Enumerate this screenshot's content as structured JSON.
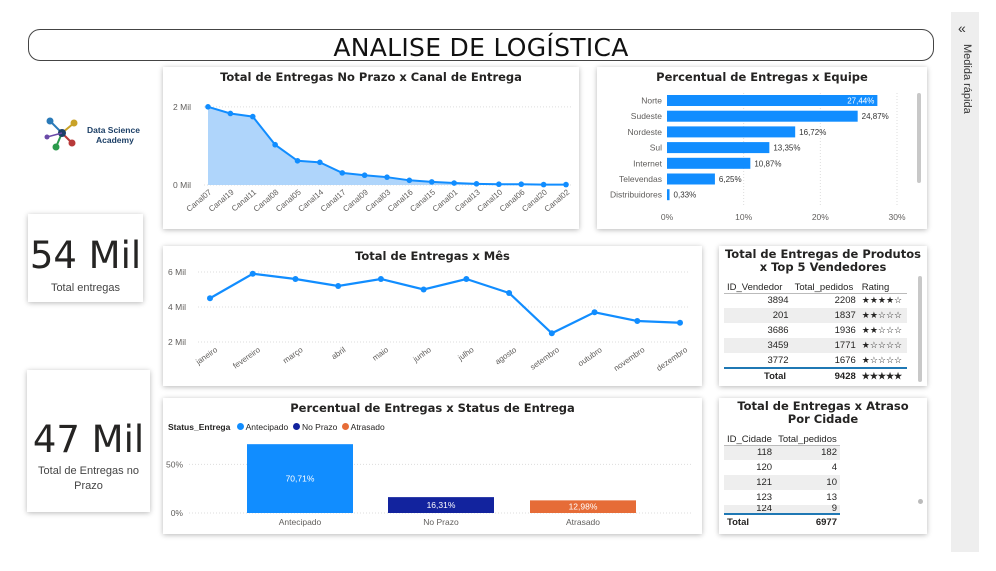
{
  "header": {
    "title": "ANALISE DE LOGÍSTICA"
  },
  "logo": {
    "line1": "Data Science",
    "line2": "Academy"
  },
  "kpi1": {
    "value": "54 Mil",
    "label": "Total entregas"
  },
  "kpi2": {
    "value": "47 Mil",
    "label": "Total de Entregas no Prazo"
  },
  "side_panel": {
    "label": "Medida rápida",
    "icon": "chevron-double-left-icon"
  },
  "colors": {
    "accent": "#118dff",
    "area_fill": "#a6d0fb",
    "no_prazo": "#12239e",
    "atrasado": "#e66c37",
    "total_line": "#1f78b4"
  },
  "chart_canal": {
    "title": "Total de Entregas No Prazo x Canal de Entrega",
    "chart_data": {
      "type": "area",
      "categories": [
        "Canal07",
        "Canal19",
        "Canal11",
        "Canal08",
        "Canal05",
        "Canal14",
        "Canal17",
        "Canal09",
        "Canal03",
        "Canal16",
        "Canal15",
        "Canal01",
        "Canal13",
        "Canal10",
        "Canal06",
        "Canal20",
        "Canal02"
      ],
      "values": [
        2.0,
        1.83,
        1.75,
        1.03,
        0.62,
        0.58,
        0.31,
        0.25,
        0.2,
        0.12,
        0.08,
        0.05,
        0.03,
        0.02,
        0.02,
        0.01,
        0.01
      ],
      "ylim": [
        0,
        2.2
      ],
      "yticks": [
        "0 Mil",
        "2 Mil"
      ]
    }
  },
  "chart_equipe": {
    "title": "Percentual de Entregas x Equipe",
    "chart_data": {
      "type": "bar",
      "orientation": "horizontal",
      "categories": [
        "Norte",
        "Sudeste",
        "Nordeste",
        "Sul",
        "Internet",
        "Televendas",
        "Distribuidores"
      ],
      "values": [
        27.44,
        24.87,
        16.72,
        13.35,
        10.87,
        6.25,
        0.33
      ],
      "labels": [
        "27,44%",
        "24,87%",
        "16,72%",
        "13,35%",
        "10,87%",
        "6,25%",
        "0,33%"
      ],
      "xlim": [
        0,
        30
      ],
      "xticks": [
        "0%",
        "10%",
        "20%",
        "30%"
      ]
    }
  },
  "chart_mes": {
    "title": "Total de Entregas x Mês",
    "chart_data": {
      "type": "line",
      "categories": [
        "janeiro",
        "fevereiro",
        "março",
        "abril",
        "maio",
        "junho",
        "julho",
        "agosto",
        "setembro",
        "outubro",
        "novembro",
        "dezembro"
      ],
      "values": [
        4.5,
        5.9,
        5.6,
        5.2,
        5.6,
        5.0,
        5.6,
        4.8,
        2.5,
        3.7,
        3.2,
        3.1
      ],
      "ylim": [
        2,
        6
      ],
      "yticks": [
        "2 Mil",
        "4 Mil",
        "6 Mil"
      ]
    }
  },
  "chart_status": {
    "title": "Percentual de Entregas x Status de Entrega",
    "legend_title": "Status_Entrega",
    "chart_data": {
      "type": "bar",
      "categories": [
        "Antecipado",
        "No Prazo",
        "Atrasado"
      ],
      "values": [
        70.71,
        16.31,
        12.98
      ],
      "labels": [
        "70,71%",
        "16,31%",
        "12,98%"
      ],
      "ylim": [
        0,
        75
      ],
      "yticks": [
        "0%",
        "50%"
      ]
    }
  },
  "table_vendedores": {
    "title": "Total de Entregas de Produtos x Top 5 Vendedores",
    "columns": [
      "ID_Vendedor",
      "Total_pedidos",
      "Rating"
    ],
    "rows": [
      {
        "id": "3894",
        "total": "2208",
        "rating": "★★★★☆"
      },
      {
        "id": "201",
        "total": "1837",
        "rating": "★★☆☆☆"
      },
      {
        "id": "3686",
        "total": "1936",
        "rating": "★★☆☆☆"
      },
      {
        "id": "3459",
        "total": "1771",
        "rating": "★☆☆☆☆"
      },
      {
        "id": "3772",
        "total": "1676",
        "rating": "★☆☆☆☆"
      }
    ],
    "total_label": "Total",
    "total_value": "9428",
    "total_rating": "★★★★★"
  },
  "table_cidades": {
    "title": "Total de Entregas x Atraso Por Cidade",
    "columns": [
      "ID_Cidade",
      "Total_pedidos"
    ],
    "rows": [
      {
        "id": "118",
        "total": "182"
      },
      {
        "id": "120",
        "total": "4"
      },
      {
        "id": "121",
        "total": "10"
      },
      {
        "id": "123",
        "total": "13"
      },
      {
        "id": "124",
        "total": "9"
      }
    ],
    "total_label": "Total",
    "total_value": "6977"
  }
}
